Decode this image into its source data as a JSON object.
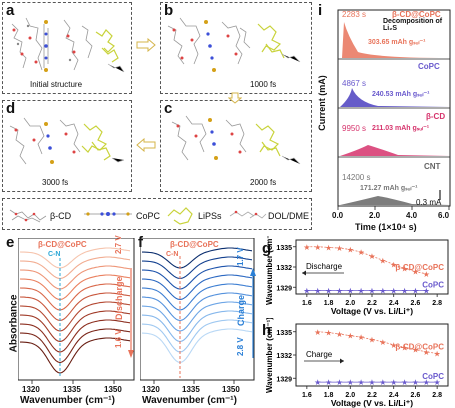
{
  "panels": {
    "a": {
      "letter": "a",
      "caption": "Initial structure"
    },
    "b": {
      "letter": "b",
      "caption": "1000 fs"
    },
    "c": {
      "letter": "c",
      "caption": "2000 fs"
    },
    "d": {
      "letter": "d",
      "caption": "3000 fs"
    }
  },
  "legend": {
    "items": [
      "β-CD",
      "CoPC",
      "LiPSs",
      "DOL/DME"
    ]
  },
  "panel_i": {
    "letter": "i",
    "title": "Decomposition of Li₂S",
    "ylabel": "Current (mA)",
    "xlabel": "Time (1×10⁴ s)",
    "xticks": [
      "0.0",
      "2.0",
      "4.0",
      "6.0"
    ],
    "scalebar": "0.3 mA",
    "traces": [
      {
        "name": "β-CD@CoPC",
        "time": "2283 s",
        "capacity": "303.65 mAh gₛᵤₗ⁻¹",
        "color": "#e8735a"
      },
      {
        "name": "CoPC",
        "time": "4867 s",
        "capacity": "240.53 mAh gₛᵤₗ⁻¹",
        "color": "#6a5acd"
      },
      {
        "name": "β-CD",
        "time": "9950 s",
        "capacity": "211.03 mAh gₛᵤₗ⁻¹",
        "color": "#d6336c"
      },
      {
        "name": "CNT",
        "time": "14200 s",
        "capacity": "171.27 mAh gₛᵤₗ⁻¹",
        "color": "#777777"
      }
    ]
  },
  "panel_e": {
    "letter": "e",
    "label": "β-CD@CoPC",
    "bond": "C-N",
    "ylabel": "Absorbance",
    "xlabel": "Wavenumber (cm⁻¹)",
    "xticks": [
      "1320",
      "1335",
      "1350"
    ],
    "volt_top": "2.7 V",
    "volt_bottom": "1.6 V",
    "process": "Discharge"
  },
  "panel_f": {
    "letter": "f",
    "label": "β-CD@CoPC",
    "bond": "C-N",
    "xlabel": "Wavenumber (cm⁻¹)",
    "xticks": [
      "1320",
      "1335",
      "1350"
    ],
    "volt_top": "1.7 V",
    "volt_bottom": "2.8 V",
    "process": "Charge"
  },
  "panel_g": {
    "letter": "g",
    "ylabel": "Wavenumber (cm⁻¹)",
    "xlabel": "Voltage (V vs. Li/Li⁺)",
    "arrow_label": "Discharge",
    "series": [
      {
        "name": "β-CD@CoPC",
        "color": "#e8735a"
      },
      {
        "name": "CoPC",
        "color": "#6a5acd"
      }
    ],
    "yticks": [
      "1335",
      "1332",
      "1329"
    ],
    "xticks": [
      "1.6",
      "1.8",
      "2.0",
      "2.2",
      "2.4",
      "2.6",
      "2.8"
    ]
  },
  "panel_h": {
    "letter": "h",
    "ylabel": "Wavenumber (cm⁻¹)",
    "xlabel": "Voltage (V vs. Li/Li⁺)",
    "arrow_label": "Charge",
    "series": [
      {
        "name": "β-CD@CoPC",
        "color": "#e8735a"
      },
      {
        "name": "CoPC",
        "color": "#6a5acd"
      }
    ],
    "yticks": [
      "1335",
      "1332",
      "1329"
    ],
    "xticks": [
      "1.6",
      "1.8",
      "2.0",
      "2.2",
      "2.4",
      "2.6",
      "2.8"
    ]
  },
  "chart_data": [
    {
      "type": "line",
      "panel": "g",
      "x": [
        1.6,
        1.7,
        1.8,
        1.9,
        2.0,
        2.1,
        2.2,
        2.3,
        2.4,
        2.5,
        2.6,
        2.7
      ],
      "series": [
        {
          "name": "β-CD@CoPC",
          "values": [
            1335.0,
            1335.0,
            1334.9,
            1334.8,
            1334.6,
            1334.2,
            1333.6,
            1333.0,
            1332.4,
            1331.8,
            1331.3,
            1331.0
          ]
        },
        {
          "name": "CoPC",
          "values": [
            1328.5,
            1328.5,
            1328.5,
            1328.5,
            1328.5,
            1328.5,
            1328.5,
            1328.5,
            1328.5,
            1328.5,
            1328.5,
            1328.5
          ]
        }
      ],
      "ylim": [
        1328,
        1336
      ],
      "xlim": [
        1.5,
        2.9
      ]
    },
    {
      "type": "line",
      "panel": "h",
      "x": [
        1.7,
        1.8,
        1.9,
        2.0,
        2.1,
        2.2,
        2.3,
        2.4,
        2.5,
        2.6,
        2.7,
        2.8
      ],
      "series": [
        {
          "name": "β-CD@CoPC",
          "values": [
            1335.0,
            1334.9,
            1334.7,
            1334.5,
            1334.3,
            1334.0,
            1333.7,
            1333.3,
            1333.0,
            1332.7,
            1332.4,
            1332.2
          ]
        },
        {
          "name": "CoPC",
          "values": [
            1328.5,
            1328.5,
            1328.5,
            1328.5,
            1328.5,
            1328.5,
            1328.5,
            1328.5,
            1328.5,
            1328.5,
            1328.5,
            1328.5
          ]
        }
      ],
      "ylim": [
        1328,
        1336
      ],
      "xlim": [
        1.5,
        2.9
      ]
    }
  ]
}
